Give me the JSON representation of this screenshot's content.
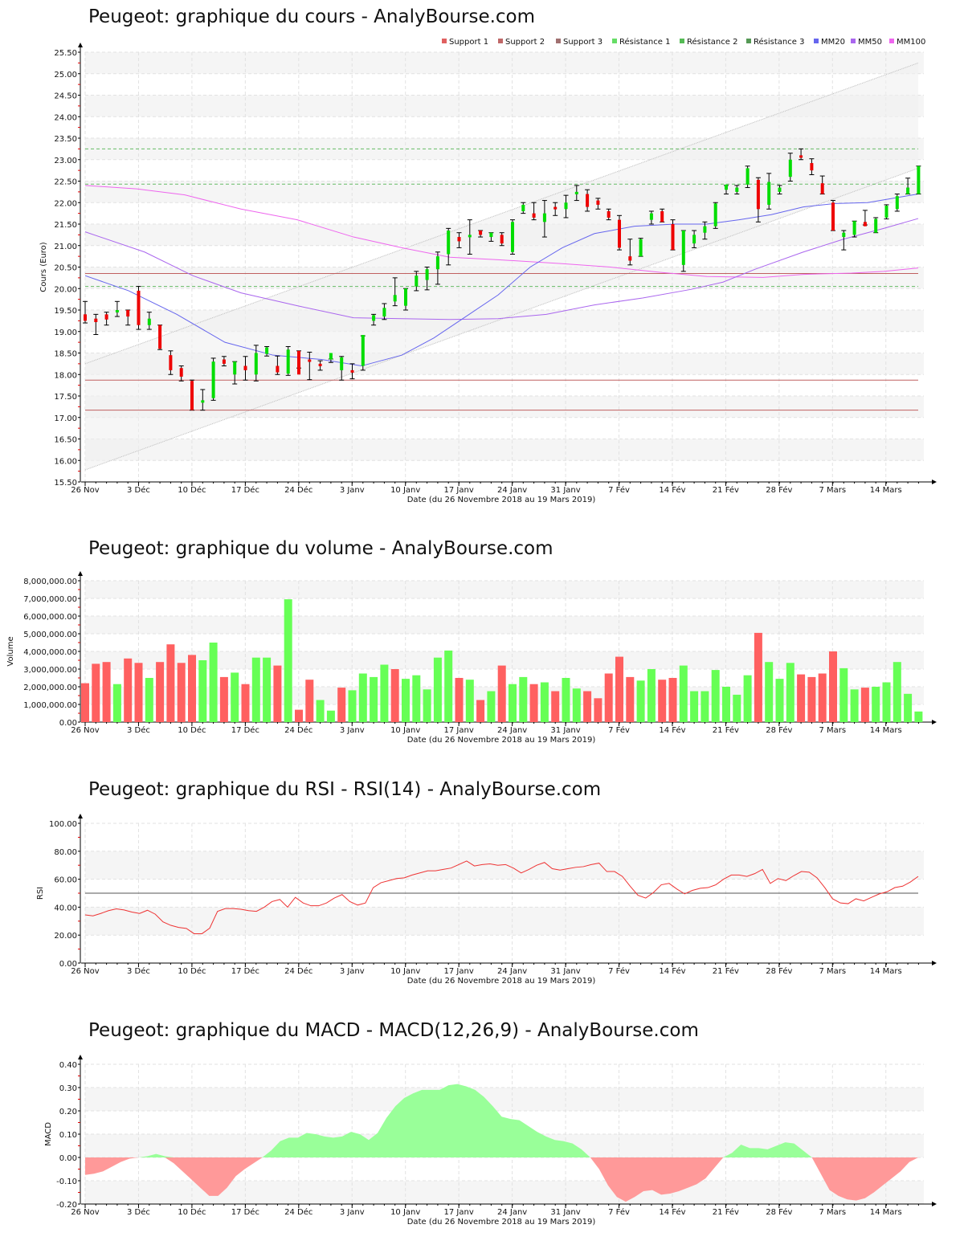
{
  "titles": {
    "price": "Peugeot: graphique du cours - AnalyBourse.com",
    "volume": "Peugeot: graphique du volume - AnalyBourse.com",
    "rsi": "Peugeot: graphique du RSI - RSI(14) - AnalyBourse.com",
    "macd": "Peugeot: graphique du MACD - MACD(12,26,9) - AnalyBourse.com"
  },
  "x_axis_label": "Date (du 26 Novembre 2018 au 19 Mars 2019)",
  "x_ticks": [
    "26 Nov",
    "3 Déc",
    "10 Déc",
    "17 Déc",
    "24 Déc",
    "3 Janv",
    "10 Janv",
    "17 Janv",
    "24 Janv",
    "31 Janv",
    "7 Fév",
    "14 Fév",
    "21 Fév",
    "28 Fév",
    "7 Mars",
    "14 Mars"
  ],
  "legend": [
    {
      "label": "Support 1",
      "color": "#e06060"
    },
    {
      "label": "Support 2",
      "color": "#c06868"
    },
    {
      "label": "Support 3",
      "color": "#a07070"
    },
    {
      "label": "Résistance 1",
      "color": "#66dd66"
    },
    {
      "label": "Résistance 2",
      "color": "#55bb55"
    },
    {
      "label": "Résistance 3",
      "color": "#559955"
    },
    {
      "label": "MM20",
      "color": "#6666ee"
    },
    {
      "label": "MM50",
      "color": "#aa66ee"
    },
    {
      "label": "MM100",
      "color": "#ee66ee"
    }
  ],
  "colors": {
    "up": "#00dd00",
    "down": "#ee0000",
    "vol_up": "#66ff55",
    "vol_down": "#ff6060",
    "macd_pos": "#99ff99",
    "macd_neg": "#ff9999",
    "rsi_line": "#ee3333"
  },
  "chart_data": [
    {
      "type": "candlestick",
      "title": "Peugeot: graphique du cours - AnalyBourse.com",
      "xlabel": "Date (du 26 Novembre 2018 au 19 Mars 2019)",
      "ylabel": "Cours (Euro)",
      "ylim": [
        15.5,
        25.5
      ],
      "yticks": [
        "15.50",
        "16.00",
        "16.50",
        "17.00",
        "17.50",
        "18.00",
        "18.50",
        "19.00",
        "19.50",
        "20.00",
        "20.50",
        "21.00",
        "21.50",
        "22.00",
        "22.50",
        "23.00",
        "23.50",
        "24.00",
        "24.50",
        "25.00",
        "25.50"
      ],
      "supports": [
        20.35,
        17.87,
        17.17
      ],
      "resistances": [
        20.05,
        22.43,
        23.25
      ],
      "candles": [
        {
          "o": 19.4,
          "h": 19.7,
          "l": 19.2,
          "c": 19.25
        },
        {
          "o": 19.3,
          "h": 19.4,
          "l": 18.93,
          "c": 19.22
        },
        {
          "o": 19.4,
          "h": 19.45,
          "l": 19.15,
          "c": 19.28
        },
        {
          "o": 19.45,
          "h": 19.7,
          "l": 19.35,
          "c": 19.5
        },
        {
          "o": 19.5,
          "h": 19.5,
          "l": 19.15,
          "c": 19.35
        },
        {
          "o": 19.95,
          "h": 20.05,
          "l": 19.05,
          "c": 19.15
        },
        {
          "o": 19.15,
          "h": 19.45,
          "l": 19.05,
          "c": 19.3
        },
        {
          "o": 19.15,
          "h": 19.15,
          "l": 18.58,
          "c": 18.6
        },
        {
          "o": 18.45,
          "h": 18.55,
          "l": 18.0,
          "c": 18.1
        },
        {
          "o": 18.15,
          "h": 18.2,
          "l": 17.85,
          "c": 17.95
        },
        {
          "o": 17.85,
          "h": 17.87,
          "l": 17.17,
          "c": 17.17
        },
        {
          "o": 17.35,
          "h": 17.65,
          "l": 17.17,
          "c": 17.4
        },
        {
          "o": 17.45,
          "h": 18.38,
          "l": 17.4,
          "c": 18.3
        },
        {
          "o": 18.35,
          "h": 18.42,
          "l": 18.2,
          "c": 18.25
        },
        {
          "o": 18.0,
          "h": 18.3,
          "l": 17.78,
          "c": 18.3
        },
        {
          "o": 18.2,
          "h": 18.42,
          "l": 17.87,
          "c": 18.1
        },
        {
          "o": 18.0,
          "h": 18.68,
          "l": 17.85,
          "c": 18.5
        },
        {
          "o": 18.48,
          "h": 18.65,
          "l": 18.43,
          "c": 18.63
        },
        {
          "o": 18.2,
          "h": 18.43,
          "l": 18.0,
          "c": 18.05
        },
        {
          "o": 18.02,
          "h": 18.65,
          "l": 17.98,
          "c": 18.58
        },
        {
          "o": 18.55,
          "h": 18.55,
          "l": 18.15,
          "c": 18.0
        },
        {
          "o": 18.35,
          "h": 18.52,
          "l": 17.88,
          "c": 18.3
        },
        {
          "o": 18.25,
          "h": 18.32,
          "l": 18.1,
          "c": 18.2
        },
        {
          "o": 18.35,
          "h": 18.36,
          "l": 18.28,
          "c": 18.5
        },
        {
          "o": 18.1,
          "h": 18.42,
          "l": 17.87,
          "c": 18.4
        },
        {
          "o": 18.1,
          "h": 18.25,
          "l": 17.9,
          "c": 18.05
        },
        {
          "o": 18.2,
          "h": 18.9,
          "l": 18.1,
          "c": 18.92
        },
        {
          "o": 19.25,
          "h": 19.4,
          "l": 19.15,
          "c": 19.38
        },
        {
          "o": 19.35,
          "h": 19.65,
          "l": 19.28,
          "c": 19.55
        },
        {
          "o": 19.7,
          "h": 20.25,
          "l": 19.6,
          "c": 19.85
        },
        {
          "o": 19.6,
          "h": 20.0,
          "l": 19.5,
          "c": 20.0
        },
        {
          "o": 20.05,
          "h": 20.4,
          "l": 19.95,
          "c": 20.3
        },
        {
          "o": 20.2,
          "h": 20.5,
          "l": 19.97,
          "c": 20.45
        },
        {
          "o": 20.45,
          "h": 20.85,
          "l": 20.1,
          "c": 20.75
        },
        {
          "o": 20.8,
          "h": 21.4,
          "l": 20.55,
          "c": 21.35
        },
        {
          "o": 21.2,
          "h": 21.3,
          "l": 20.95,
          "c": 21.1
        },
        {
          "o": 21.2,
          "h": 21.6,
          "l": 20.8,
          "c": 21.25
        },
        {
          "o": 21.35,
          "h": 21.35,
          "l": 21.2,
          "c": 21.25
        },
        {
          "o": 21.2,
          "h": 21.3,
          "l": 21.1,
          "c": 21.3
        },
        {
          "o": 21.25,
          "h": 21.3,
          "l": 21.0,
          "c": 21.05
        },
        {
          "o": 20.85,
          "h": 21.6,
          "l": 20.8,
          "c": 21.55
        },
        {
          "o": 21.8,
          "h": 22.0,
          "l": 21.75,
          "c": 21.95
        },
        {
          "o": 21.75,
          "h": 22.0,
          "l": 21.6,
          "c": 21.65
        },
        {
          "o": 21.55,
          "h": 22.05,
          "l": 21.2,
          "c": 21.75
        },
        {
          "o": 21.9,
          "h": 22.0,
          "l": 21.7,
          "c": 21.85
        },
        {
          "o": 21.85,
          "h": 22.17,
          "l": 21.65,
          "c": 22.0
        },
        {
          "o": 22.2,
          "h": 22.4,
          "l": 22.05,
          "c": 22.25
        },
        {
          "o": 22.2,
          "h": 22.3,
          "l": 21.8,
          "c": 21.9
        },
        {
          "o": 22.05,
          "h": 22.1,
          "l": 21.85,
          "c": 21.95
        },
        {
          "o": 21.8,
          "h": 21.85,
          "l": 21.6,
          "c": 21.65
        },
        {
          "o": 21.6,
          "h": 21.7,
          "l": 20.9,
          "c": 20.95
        },
        {
          "o": 20.75,
          "h": 21.15,
          "l": 20.55,
          "c": 20.65
        },
        {
          "o": 20.75,
          "h": 21.17,
          "l": 20.75,
          "c": 21.15
        },
        {
          "o": 21.6,
          "h": 21.8,
          "l": 21.5,
          "c": 21.75
        },
        {
          "o": 21.8,
          "h": 21.85,
          "l": 21.55,
          "c": 21.55
        },
        {
          "o": 21.5,
          "h": 21.6,
          "l": 20.9,
          "c": 20.9
        },
        {
          "o": 20.55,
          "h": 21.35,
          "l": 20.4,
          "c": 21.35
        },
        {
          "o": 21.05,
          "h": 21.35,
          "l": 20.95,
          "c": 21.25
        },
        {
          "o": 21.3,
          "h": 21.55,
          "l": 21.15,
          "c": 21.45
        },
        {
          "o": 21.45,
          "h": 22.0,
          "l": 21.4,
          "c": 21.98
        },
        {
          "o": 22.3,
          "h": 22.4,
          "l": 22.2,
          "c": 22.42
        },
        {
          "o": 22.25,
          "h": 22.4,
          "l": 22.2,
          "c": 22.35
        },
        {
          "o": 22.42,
          "h": 22.85,
          "l": 22.35,
          "c": 22.8
        },
        {
          "o": 22.53,
          "h": 22.58,
          "l": 21.55,
          "c": 21.85
        },
        {
          "o": 21.95,
          "h": 22.68,
          "l": 21.85,
          "c": 22.48
        },
        {
          "o": 22.25,
          "h": 22.4,
          "l": 22.2,
          "c": 22.35
        },
        {
          "o": 22.6,
          "h": 23.15,
          "l": 22.5,
          "c": 23.0
        },
        {
          "o": 23.1,
          "h": 23.25,
          "l": 23.0,
          "c": 23.05
        },
        {
          "o": 22.92,
          "h": 23.02,
          "l": 22.65,
          "c": 22.75
        },
        {
          "o": 22.45,
          "h": 22.62,
          "l": 22.2,
          "c": 22.2
        },
        {
          "o": 22.0,
          "h": 22.05,
          "l": 21.35,
          "c": 21.35
        },
        {
          "o": 21.2,
          "h": 21.35,
          "l": 20.9,
          "c": 21.3
        },
        {
          "o": 21.25,
          "h": 21.57,
          "l": 21.2,
          "c": 21.57
        },
        {
          "o": 21.55,
          "h": 21.82,
          "l": 21.48,
          "c": 21.45
        },
        {
          "o": 21.3,
          "h": 21.65,
          "l": 21.3,
          "c": 21.62
        },
        {
          "o": 21.65,
          "h": 21.95,
          "l": 21.62,
          "c": 21.93
        },
        {
          "o": 21.85,
          "h": 22.2,
          "l": 21.8,
          "c": 22.15
        },
        {
          "o": 22.2,
          "h": 22.57,
          "l": 22.2,
          "c": 22.35
        },
        {
          "o": 22.2,
          "h": 22.85,
          "l": 22.2,
          "c": 22.85
        }
      ],
      "mm20_endpoints": {
        "start": 20.3,
        "min": 18.2,
        "end": 22.2
      },
      "mm50_endpoints": {
        "start": 21.3,
        "min": 19.28,
        "end": 21.63
      },
      "mm100_endpoints": {
        "start": 22.4,
        "min": 20.25,
        "end": 20.48
      }
    },
    {
      "type": "bar",
      "title": "Peugeot: graphique du volume - AnalyBourse.com",
      "xlabel": "Date (du 26 Novembre 2018 au 19 Mars 2019)",
      "ylabel": "Volume",
      "ylim": [
        0,
        8000000
      ],
      "yticks": [
        "0.00",
        "1,000,000.00",
        "2,000,000.00",
        "3,000,000.00",
        "4,000,000.00",
        "5,000,000.00",
        "6,000,000.00",
        "7,000,000.00",
        "8,000,000.00"
      ],
      "values": [
        2200000,
        3300000,
        3400000,
        2150000,
        3600000,
        3350000,
        2500000,
        3400000,
        4400000,
        3350000,
        3800000,
        3500000,
        4500000,
        2550000,
        2800000,
        2150000,
        3650000,
        3650000,
        3200000,
        6950000,
        700000,
        2400000,
        1250000,
        650000,
        1950000,
        1800000,
        2750000,
        2550000,
        3250000,
        3000000,
        2450000,
        2650000,
        1850000,
        3650000,
        4050000,
        2500000,
        2400000,
        1250000,
        1750000,
        3200000,
        2150000,
        2550000,
        2150000,
        2250000,
        1750000,
        2500000,
        1900000,
        1750000,
        1350000,
        2750000,
        3700000,
        2550000,
        2350000,
        3000000,
        2400000,
        2500000,
        3200000,
        1750000,
        1750000,
        2950000,
        2000000,
        1550000,
        2650000,
        5050000,
        3400000,
        2450000,
        3350000,
        2700000,
        2550000,
        2750000,
        4000000,
        3050000,
        1850000,
        1950000,
        2000000,
        2250000,
        3400000,
        1600000,
        600000
      ],
      "colors": [
        "down",
        "down",
        "down",
        "up",
        "down",
        "down",
        "up",
        "down",
        "down",
        "down",
        "down",
        "up",
        "up",
        "down",
        "up",
        "down",
        "up",
        "up",
        "down",
        "up",
        "down",
        "down",
        "up",
        "up",
        "down",
        "up",
        "up",
        "up",
        "up",
        "down",
        "up",
        "up",
        "up",
        "up",
        "up",
        "down",
        "up",
        "down",
        "up",
        "down",
        "up",
        "up",
        "down",
        "up",
        "down",
        "up",
        "up",
        "down",
        "down",
        "down",
        "down",
        "down",
        "up",
        "up",
        "down",
        "down",
        "up",
        "up",
        "up",
        "up",
        "up",
        "up",
        "up",
        "down",
        "up",
        "up",
        "up",
        "down",
        "down",
        "down",
        "down",
        "up",
        "up",
        "down",
        "up",
        "up",
        "up",
        "up",
        "up"
      ]
    },
    {
      "type": "line",
      "title": "Peugeot: graphique du RSI - RSI(14) - AnalyBourse.com",
      "xlabel": "Date (du 26 Novembre 2018 au 19 Mars 2019)",
      "ylabel": "RSI",
      "ylim": [
        0,
        100
      ],
      "yticks": [
        "0.00",
        "20.00",
        "40.00",
        "60.00",
        "80.00",
        "100.00"
      ],
      "reference_line": 50,
      "values": [
        34.5,
        33.8,
        35.5,
        37.5,
        38.8,
        38,
        36.5,
        35.5,
        37.8,
        35,
        29.5,
        27,
        25.5,
        24.8,
        21,
        21,
        25,
        37,
        39,
        39,
        38.5,
        37.5,
        37,
        40,
        44,
        45.5,
        40,
        47,
        43,
        41,
        41,
        43,
        46.5,
        49,
        44,
        41.5,
        43,
        54,
        57.5,
        59,
        60.5,
        61,
        63,
        64.5,
        66,
        66,
        67,
        68,
        70.5,
        73,
        69.5,
        70.5,
        71,
        70,
        70.5,
        68,
        64.5,
        67,
        70,
        72,
        67.5,
        66.5,
        67.5,
        68.5,
        69,
        70.5,
        71.5,
        65.5,
        65.5,
        62,
        55,
        48.5,
        46.5,
        50.5,
        56,
        57,
        53,
        49.5,
        52,
        53.5,
        54,
        56,
        60,
        63,
        63,
        62,
        64,
        67,
        57,
        60.5,
        59,
        62.5,
        65.5,
        65,
        61,
        54,
        46,
        43,
        42.5,
        46,
        44.5,
        47,
        49.5,
        51,
        54,
        55,
        58,
        62
      ]
    },
    {
      "type": "area",
      "title": "Peugeot: graphique du MACD - MACD(12,26,9) - AnalyBourse.com",
      "xlabel": "Date (du 26 Novembre 2018 au 19 Mars 2019)",
      "ylabel": "MACD",
      "ylim": [
        -0.2,
        0.4
      ],
      "yticks": [
        "-0.20",
        "-0.10",
        "0.00",
        "0.10",
        "0.20",
        "0.30",
        "0.40"
      ],
      "values": [
        -0.075,
        -0.07,
        -0.06,
        -0.04,
        -0.02,
        -0.005,
        0.0,
        0.005,
        0.015,
        0.005,
        -0.025,
        -0.06,
        -0.095,
        -0.13,
        -0.165,
        -0.165,
        -0.13,
        -0.08,
        -0.05,
        -0.025,
        0.0,
        0.03,
        0.07,
        0.085,
        0.085,
        0.105,
        0.1,
        0.09,
        0.085,
        0.09,
        0.11,
        0.1,
        0.075,
        0.105,
        0.17,
        0.22,
        0.255,
        0.275,
        0.29,
        0.29,
        0.29,
        0.31,
        0.315,
        0.305,
        0.29,
        0.26,
        0.22,
        0.175,
        0.165,
        0.16,
        0.135,
        0.11,
        0.09,
        0.075,
        0.07,
        0.06,
        0.035,
        0.0,
        -0.05,
        -0.12,
        -0.17,
        -0.19,
        -0.17,
        -0.145,
        -0.14,
        -0.16,
        -0.155,
        -0.145,
        -0.13,
        -0.115,
        -0.09,
        -0.045,
        0.0,
        0.02,
        0.055,
        0.04,
        0.04,
        0.035,
        0.05,
        0.065,
        0.06,
        0.03,
        0.0,
        -0.07,
        -0.14,
        -0.165,
        -0.18,
        -0.185,
        -0.175,
        -0.15,
        -0.12,
        -0.09,
        -0.06,
        -0.02,
        0.0
      ]
    }
  ]
}
